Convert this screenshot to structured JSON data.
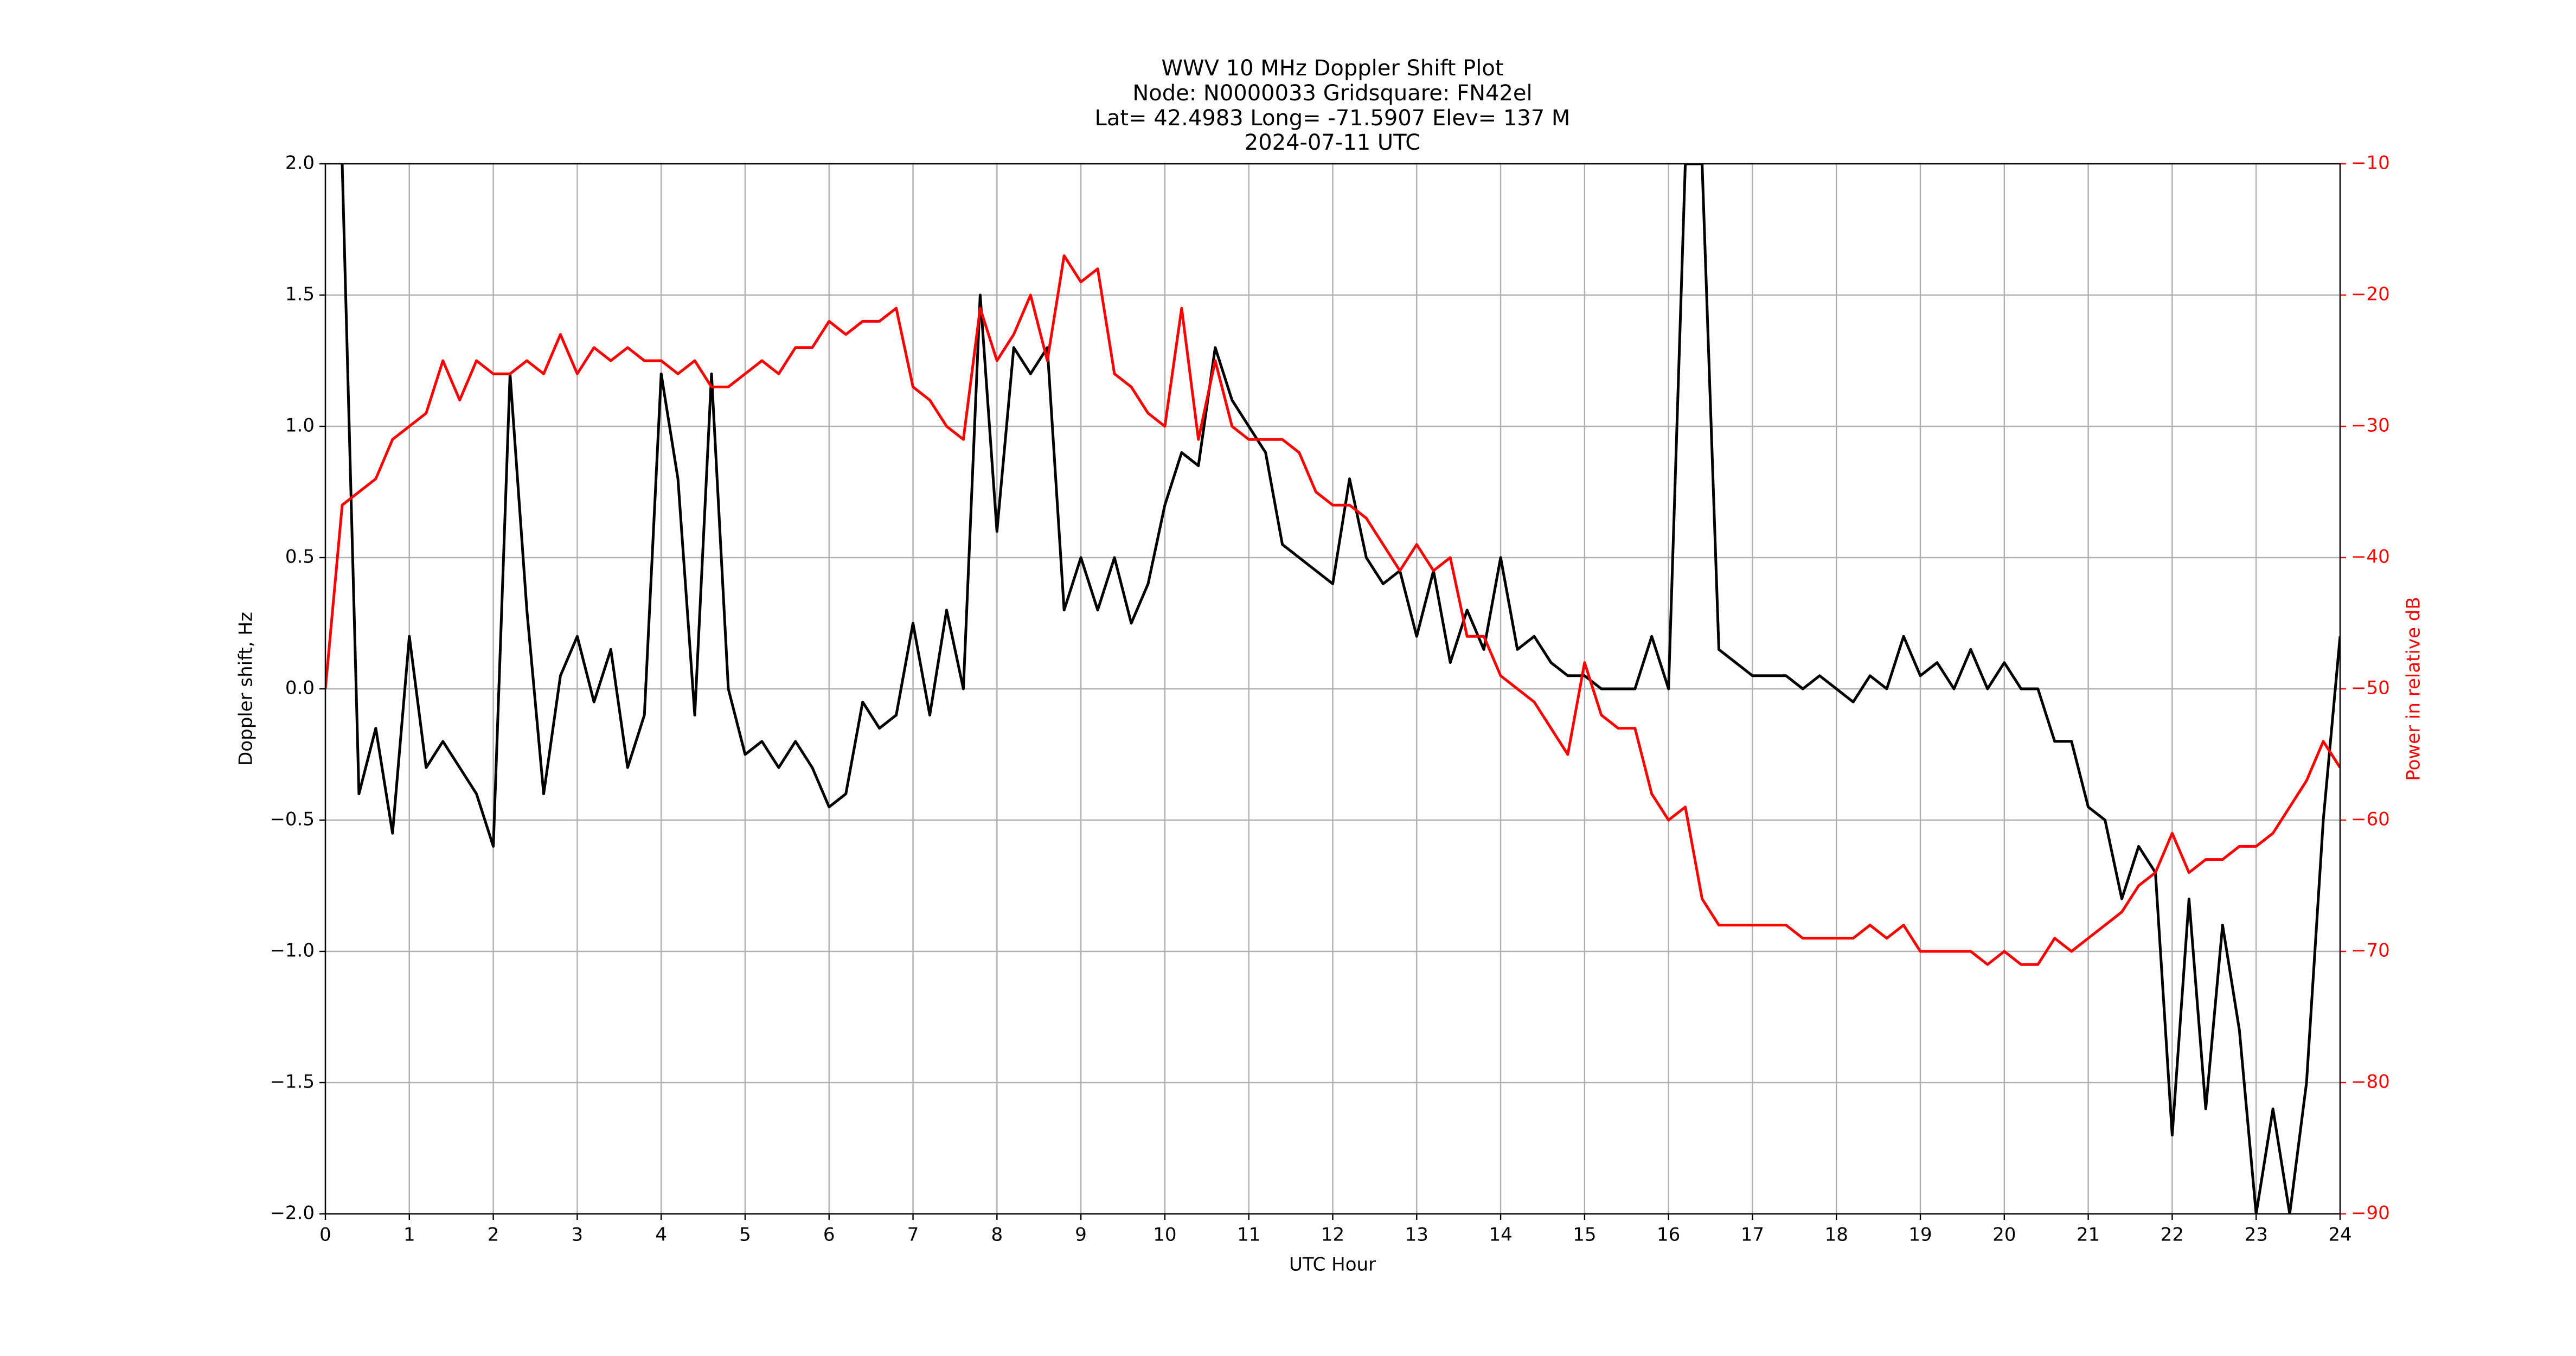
{
  "chart_data": {
    "type": "line",
    "title": [
      "WWV 10 MHz Doppler Shift Plot",
      "Node:  N0000033     Gridsquare:  FN42el",
      "Lat= 42.4983    Long= -71.5907    Elev= 137 M",
      "2024-07-11  UTC"
    ],
    "xlabel": "UTC Hour",
    "ylabel": "Doppler shift, Hz",
    "y2label": "Power in relative dB",
    "grid": true,
    "xlim": [
      0,
      24
    ],
    "xticks": [
      0,
      1,
      2,
      3,
      4,
      5,
      6,
      7,
      8,
      9,
      10,
      11,
      12,
      13,
      14,
      15,
      16,
      17,
      18,
      19,
      20,
      21,
      22,
      23,
      24
    ],
    "ylim": [
      -2,
      2
    ],
    "yticks": [
      {
        "value": -2,
        "label": "−2.0"
      },
      {
        "value": -1.5,
        "label": "−1.5"
      },
      {
        "value": -1,
        "label": "−1.0"
      },
      {
        "value": -0.5,
        "label": "−0.5"
      },
      {
        "value": 0,
        "label": "0.0"
      },
      {
        "value": 0.5,
        "label": "0.5"
      },
      {
        "value": 1,
        "label": "1.0"
      },
      {
        "value": 1.5,
        "label": "1.5"
      },
      {
        "value": 2,
        "label": "2.0"
      }
    ],
    "y2lim": [
      -90,
      -10
    ],
    "y2ticks": [
      {
        "value": -90,
        "label": "−90"
      },
      {
        "value": -80,
        "label": "−80"
      },
      {
        "value": -70,
        "label": "−70"
      },
      {
        "value": -60,
        "label": "−60"
      },
      {
        "value": -50,
        "label": "−50"
      },
      {
        "value": -40,
        "label": "−40"
      },
      {
        "value": -30,
        "label": "−30"
      },
      {
        "value": -20,
        "label": "−20"
      },
      {
        "value": -10,
        "label": "−10"
      }
    ],
    "x": [
      0,
      0.2,
      0.4,
      0.6,
      0.8,
      1,
      1.2,
      1.4,
      1.6,
      1.8,
      2,
      2.2,
      2.4,
      2.6,
      2.8,
      3,
      3.2,
      3.4,
      3.6,
      3.8,
      4,
      4.2,
      4.4,
      4.6,
      4.8,
      5,
      5.2,
      5.4,
      5.6,
      5.8,
      6,
      6.2,
      6.4,
      6.6,
      6.8,
      7,
      7.2,
      7.4,
      7.6,
      7.8,
      8,
      8.2,
      8.4,
      8.6,
      8.8,
      9,
      9.2,
      9.4,
      9.6,
      9.8,
      10,
      10.2,
      10.4,
      10.6,
      10.8,
      11,
      11.2,
      11.4,
      11.6,
      11.8,
      12,
      12.2,
      12.4,
      12.6,
      12.8,
      13,
      13.2,
      13.4,
      13.6,
      13.8,
      14,
      14.2,
      14.4,
      14.6,
      14.8,
      15,
      15.2,
      15.4,
      15.6,
      15.8,
      16,
      16.2,
      16.4,
      16.6,
      16.8,
      17,
      17.2,
      17.4,
      17.6,
      17.8,
      18,
      18.2,
      18.4,
      18.6,
      18.8,
      19,
      19.2,
      19.4,
      19.6,
      19.8,
      20,
      20.2,
      20.4,
      20.6,
      20.8,
      21,
      21.2,
      21.4,
      21.6,
      21.8,
      22,
      22.2,
      22.4,
      22.6,
      22.8,
      23,
      23.2,
      23.4,
      23.6,
      23.8,
      24
    ],
    "series": [
      {
        "color": "#000000",
        "values": [
          null,
          2.0,
          -0.4,
          -0.15,
          -0.55,
          0.2,
          -0.3,
          -0.2,
          -0.3,
          -0.4,
          -0.6,
          1.2,
          0.3,
          -0.4,
          0.05,
          0.2,
          -0.05,
          0.15,
          -0.3,
          -0.1,
          1.2,
          0.8,
          -0.1,
          1.2,
          0.0,
          -0.25,
          -0.2,
          -0.3,
          -0.2,
          -0.3,
          -0.45,
          -0.4,
          -0.05,
          -0.15,
          -0.1,
          0.25,
          -0.1,
          0.3,
          0.0,
          1.5,
          0.6,
          1.3,
          1.2,
          1.3,
          0.3,
          0.5,
          0.3,
          0.5,
          0.25,
          0.4,
          0.7,
          0.9,
          0.85,
          1.3,
          1.1,
          1.0,
          0.9,
          0.55,
          0.5,
          0.45,
          0.4,
          0.8,
          0.5,
          0.4,
          0.45,
          0.2,
          0.45,
          0.1,
          0.3,
          0.15,
          0.5,
          0.15,
          0.2,
          0.1,
          0.05,
          0.05,
          0.0,
          0.0,
          0.0,
          0.2,
          0.0,
          2.0,
          2.0,
          0.15,
          0.1,
          0.05,
          0.05,
          0.05,
          0.0,
          0.05,
          0.0,
          -0.05,
          0.05,
          0.0,
          0.2,
          0.05,
          0.1,
          0.0,
          0.15,
          0.0,
          0.1,
          0.0,
          0.0,
          -0.2,
          -0.2,
          -0.45,
          -0.5,
          -0.8,
          -0.6,
          -0.7,
          -1.7,
          -0.8,
          -1.6,
          -0.9,
          -1.3,
          -2.0,
          -1.6,
          -2.0,
          -1.5,
          -0.5,
          0.2
        ]
      },
      {
        "color": "#ff0000",
        "axis": "y2",
        "values": [
          -50,
          -36,
          -35,
          -34,
          -31,
          -30,
          -29,
          -25,
          -28,
          -25,
          -26,
          -26,
          -25,
          -26,
          -23,
          -26,
          -24,
          -25,
          -24,
          -25,
          -25,
          -26,
          -25,
          -27,
          -27,
          -26,
          -25,
          -26,
          -24,
          -24,
          -22,
          -23,
          -22,
          -22,
          -21,
          -27,
          -28,
          -30,
          -31,
          -21,
          -25,
          -23,
          -20,
          -25,
          -17,
          -19,
          -18,
          -26,
          -27,
          -29,
          -30,
          -21,
          -31,
          -25,
          -30,
          -31,
          -31,
          -31,
          -32,
          -35,
          -36,
          -36,
          -37,
          -39,
          -41,
          -39,
          -41,
          -40,
          -46,
          -46,
          -49,
          -50,
          -51,
          -53,
          -55,
          -48,
          -52,
          -53,
          -53,
          -58,
          -60,
          -59,
          -66,
          -68,
          -68,
          -68,
          -68,
          -68,
          -69,
          -69,
          -69,
          -69,
          -68,
          -69,
          -68,
          -70,
          -70,
          -70,
          -70,
          -71,
          -70,
          -71,
          -71,
          -69,
          -70,
          -69,
          -68,
          -67,
          -65,
          -64,
          -61,
          -64,
          -63,
          -63,
          -62,
          -62,
          -61,
          -59,
          -57,
          -54,
          -56
        ]
      }
    ]
  }
}
